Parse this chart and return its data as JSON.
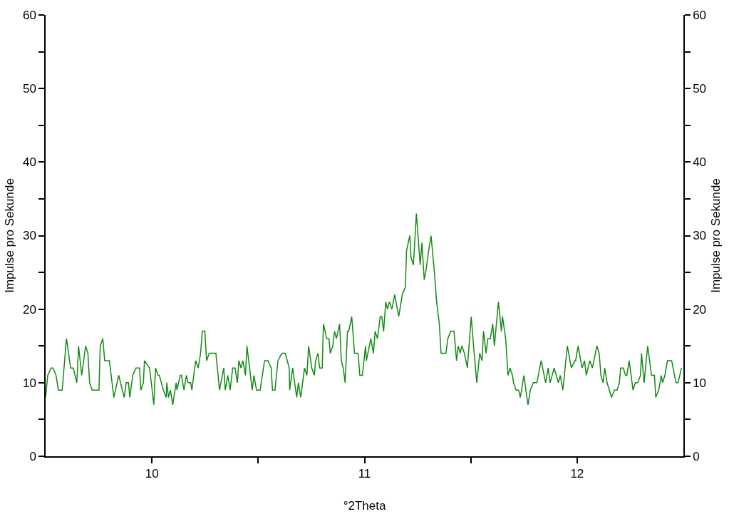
{
  "chart_data": {
    "type": "line",
    "xlabel": "°2Theta",
    "ylabel": "Impulse pro Sekunde",
    "y2label": "Impulse pro Sekunde",
    "xlim": [
      9.5,
      12.5
    ],
    "xticks": [
      10,
      {
        "value": 10.5,
        "label": null
      },
      11,
      {
        "value": 11.5,
        "label": null
      },
      12
    ],
    "ylim": [
      0,
      60
    ],
    "yticks": [
      0,
      {
        "value": 5,
        "label": null
      },
      10,
      {
        "value": 15,
        "label": null
      },
      20,
      {
        "value": 25,
        "label": null
      },
      30,
      {
        "value": 35,
        "label": null
      },
      40,
      {
        "value": 45,
        "label": null
      },
      50,
      {
        "value": 55,
        "label": null
      },
      60
    ],
    "y2lim": [
      0,
      60
    ],
    "y2ticks": [
      0,
      {
        "value": 5,
        "label": null
      },
      10,
      {
        "value": 15,
        "label": null
      },
      20,
      {
        "value": 25,
        "label": null
      },
      30,
      {
        "value": 35,
        "label": null
      },
      40,
      {
        "value": 45,
        "label": null
      },
      50,
      {
        "value": 55,
        "label": null
      },
      60
    ],
    "marker": "none",
    "line_style": "solid",
    "x": [
      9.5,
      9.51,
      9.526,
      9.535,
      9.549,
      9.56,
      9.578,
      9.598,
      9.618,
      9.63,
      9.647,
      9.655,
      9.67,
      9.688,
      9.699,
      9.707,
      9.719,
      9.751,
      9.757,
      9.769,
      9.778,
      9.8,
      9.821,
      9.844,
      9.861,
      9.87,
      9.879,
      9.89,
      9.896,
      9.91,
      9.925,
      9.942,
      9.948,
      9.96,
      9.965,
      9.989,
      10.009,
      10.017,
      10.029,
      10.035,
      10.054,
      10.067,
      10.07,
      10.078,
      10.087,
      10.098,
      10.114,
      10.118,
      10.133,
      10.139,
      10.151,
      10.162,
      10.17,
      10.182,
      10.188,
      10.206,
      10.218,
      10.229,
      10.237,
      10.249,
      10.257,
      10.27,
      10.301,
      10.318,
      10.338,
      10.345,
      10.357,
      10.368,
      10.38,
      10.391,
      10.402,
      10.409,
      10.419,
      10.428,
      10.44,
      10.447,
      10.472,
      10.48,
      10.492,
      10.509,
      10.53,
      10.546,
      10.561,
      10.567,
      10.579,
      10.593,
      10.611,
      10.627,
      10.646,
      10.648,
      10.662,
      10.681,
      10.689,
      10.7,
      10.718,
      10.729,
      10.737,
      10.752,
      10.764,
      10.77,
      10.781,
      10.789,
      10.801,
      10.807,
      10.822,
      10.833,
      10.839,
      10.851,
      10.859,
      10.868,
      10.883,
      10.891,
      10.9,
      10.909,
      10.92,
      10.926,
      10.94,
      10.953,
      10.97,
      10.978,
      10.99,
      11.005,
      11.009,
      11.03,
      11.042,
      11.05,
      11.061,
      11.074,
      11.081,
      11.09,
      11.1,
      11.108,
      11.117,
      11.129,
      11.142,
      11.161,
      11.178,
      11.192,
      11.198,
      11.213,
      11.219,
      11.23,
      11.244,
      11.262,
      11.27,
      11.281,
      11.288,
      11.302,
      11.313,
      11.329,
      11.339,
      11.352,
      11.36,
      11.383,
      11.392,
      11.406,
      11.421,
      11.433,
      11.441,
      11.45,
      11.458,
      11.47,
      11.484,
      11.502,
      11.513,
      11.528,
      11.542,
      11.553,
      11.56,
      11.572,
      11.58,
      11.592,
      11.603,
      11.611,
      11.63,
      11.644,
      11.649,
      11.664,
      11.675,
      11.684,
      11.696,
      11.701,
      11.713,
      11.725,
      11.733,
      11.75,
      11.759,
      11.769,
      11.78,
      11.794,
      11.811,
      11.831,
      11.852,
      11.864,
      11.873,
      11.892,
      11.912,
      11.921,
      11.933,
      11.954,
      11.973,
      11.989,
      11.993,
      12.005,
      12.023,
      12.035,
      12.043,
      12.06,
      12.072,
      12.093,
      12.104,
      12.112,
      12.122,
      12.13,
      12.141,
      12.162,
      12.176,
      12.188,
      12.199,
      12.205,
      12.217,
      12.228,
      12.234,
      12.245,
      12.263,
      12.274,
      12.286,
      12.298,
      12.303,
      12.315,
      12.332,
      12.35,
      12.364,
      12.37,
      12.384,
      12.396,
      12.402,
      12.413,
      12.425,
      12.436,
      12.445,
      12.465,
      12.475,
      12.491
    ],
    "series": [
      {
        "color": "#138a13",
        "values": [
          8,
          11,
          12,
          12,
          11,
          9,
          9,
          16,
          12,
          12,
          10,
          15,
          11,
          15,
          14,
          10,
          9,
          9,
          15,
          16,
          13,
          13,
          8,
          11,
          9,
          8,
          10,
          10,
          8,
          11,
          12,
          12,
          9,
          10,
          13,
          12,
          7,
          12,
          11,
          11,
          9,
          8,
          10,
          8,
          9,
          7,
          10,
          9,
          11,
          11,
          9,
          11,
          10,
          10,
          9,
          13,
          12,
          14,
          17,
          17,
          13,
          14,
          14,
          9,
          12,
          9,
          11,
          9,
          12,
          12,
          10,
          13,
          12,
          13,
          11,
          15,
          9,
          11,
          9,
          9,
          13,
          13,
          12,
          9,
          9,
          13,
          14,
          14,
          12,
          9,
          12,
          8,
          10,
          8,
          12,
          11,
          15,
          12,
          11,
          13,
          14,
          12,
          12,
          18,
          16,
          16,
          14,
          15,
          17,
          16,
          18,
          13,
          12,
          10,
          17,
          17,
          19,
          14,
          14,
          11,
          11,
          15,
          13,
          16,
          14,
          17,
          16,
          19,
          19,
          17,
          21,
          20,
          21,
          20,
          22,
          19,
          22,
          23,
          28,
          30,
          27,
          26,
          33,
          26,
          29,
          24,
          25,
          28,
          30,
          25,
          21,
          18,
          14,
          14,
          16,
          17,
          17,
          13,
          15,
          14,
          15,
          14,
          12,
          19,
          15,
          10,
          14,
          13,
          17,
          14,
          16,
          16,
          18,
          15,
          21,
          17,
          19,
          16,
          11,
          12,
          11,
          10,
          9,
          9,
          8,
          11,
          9,
          7,
          9,
          10,
          10,
          13,
          10,
          12,
          10,
          12,
          10,
          11,
          9,
          15,
          12,
          13,
          13,
          15,
          12,
          13,
          11,
          13,
          12,
          15,
          14,
          11,
          10,
          12,
          10,
          8,
          9,
          9,
          10,
          12,
          12,
          11,
          11,
          13,
          9,
          10,
          10,
          11,
          14,
          10,
          15,
          11,
          11,
          8,
          9,
          11,
          10,
          11,
          13,
          13,
          13,
          10,
          10,
          12
        ]
      }
    ]
  }
}
